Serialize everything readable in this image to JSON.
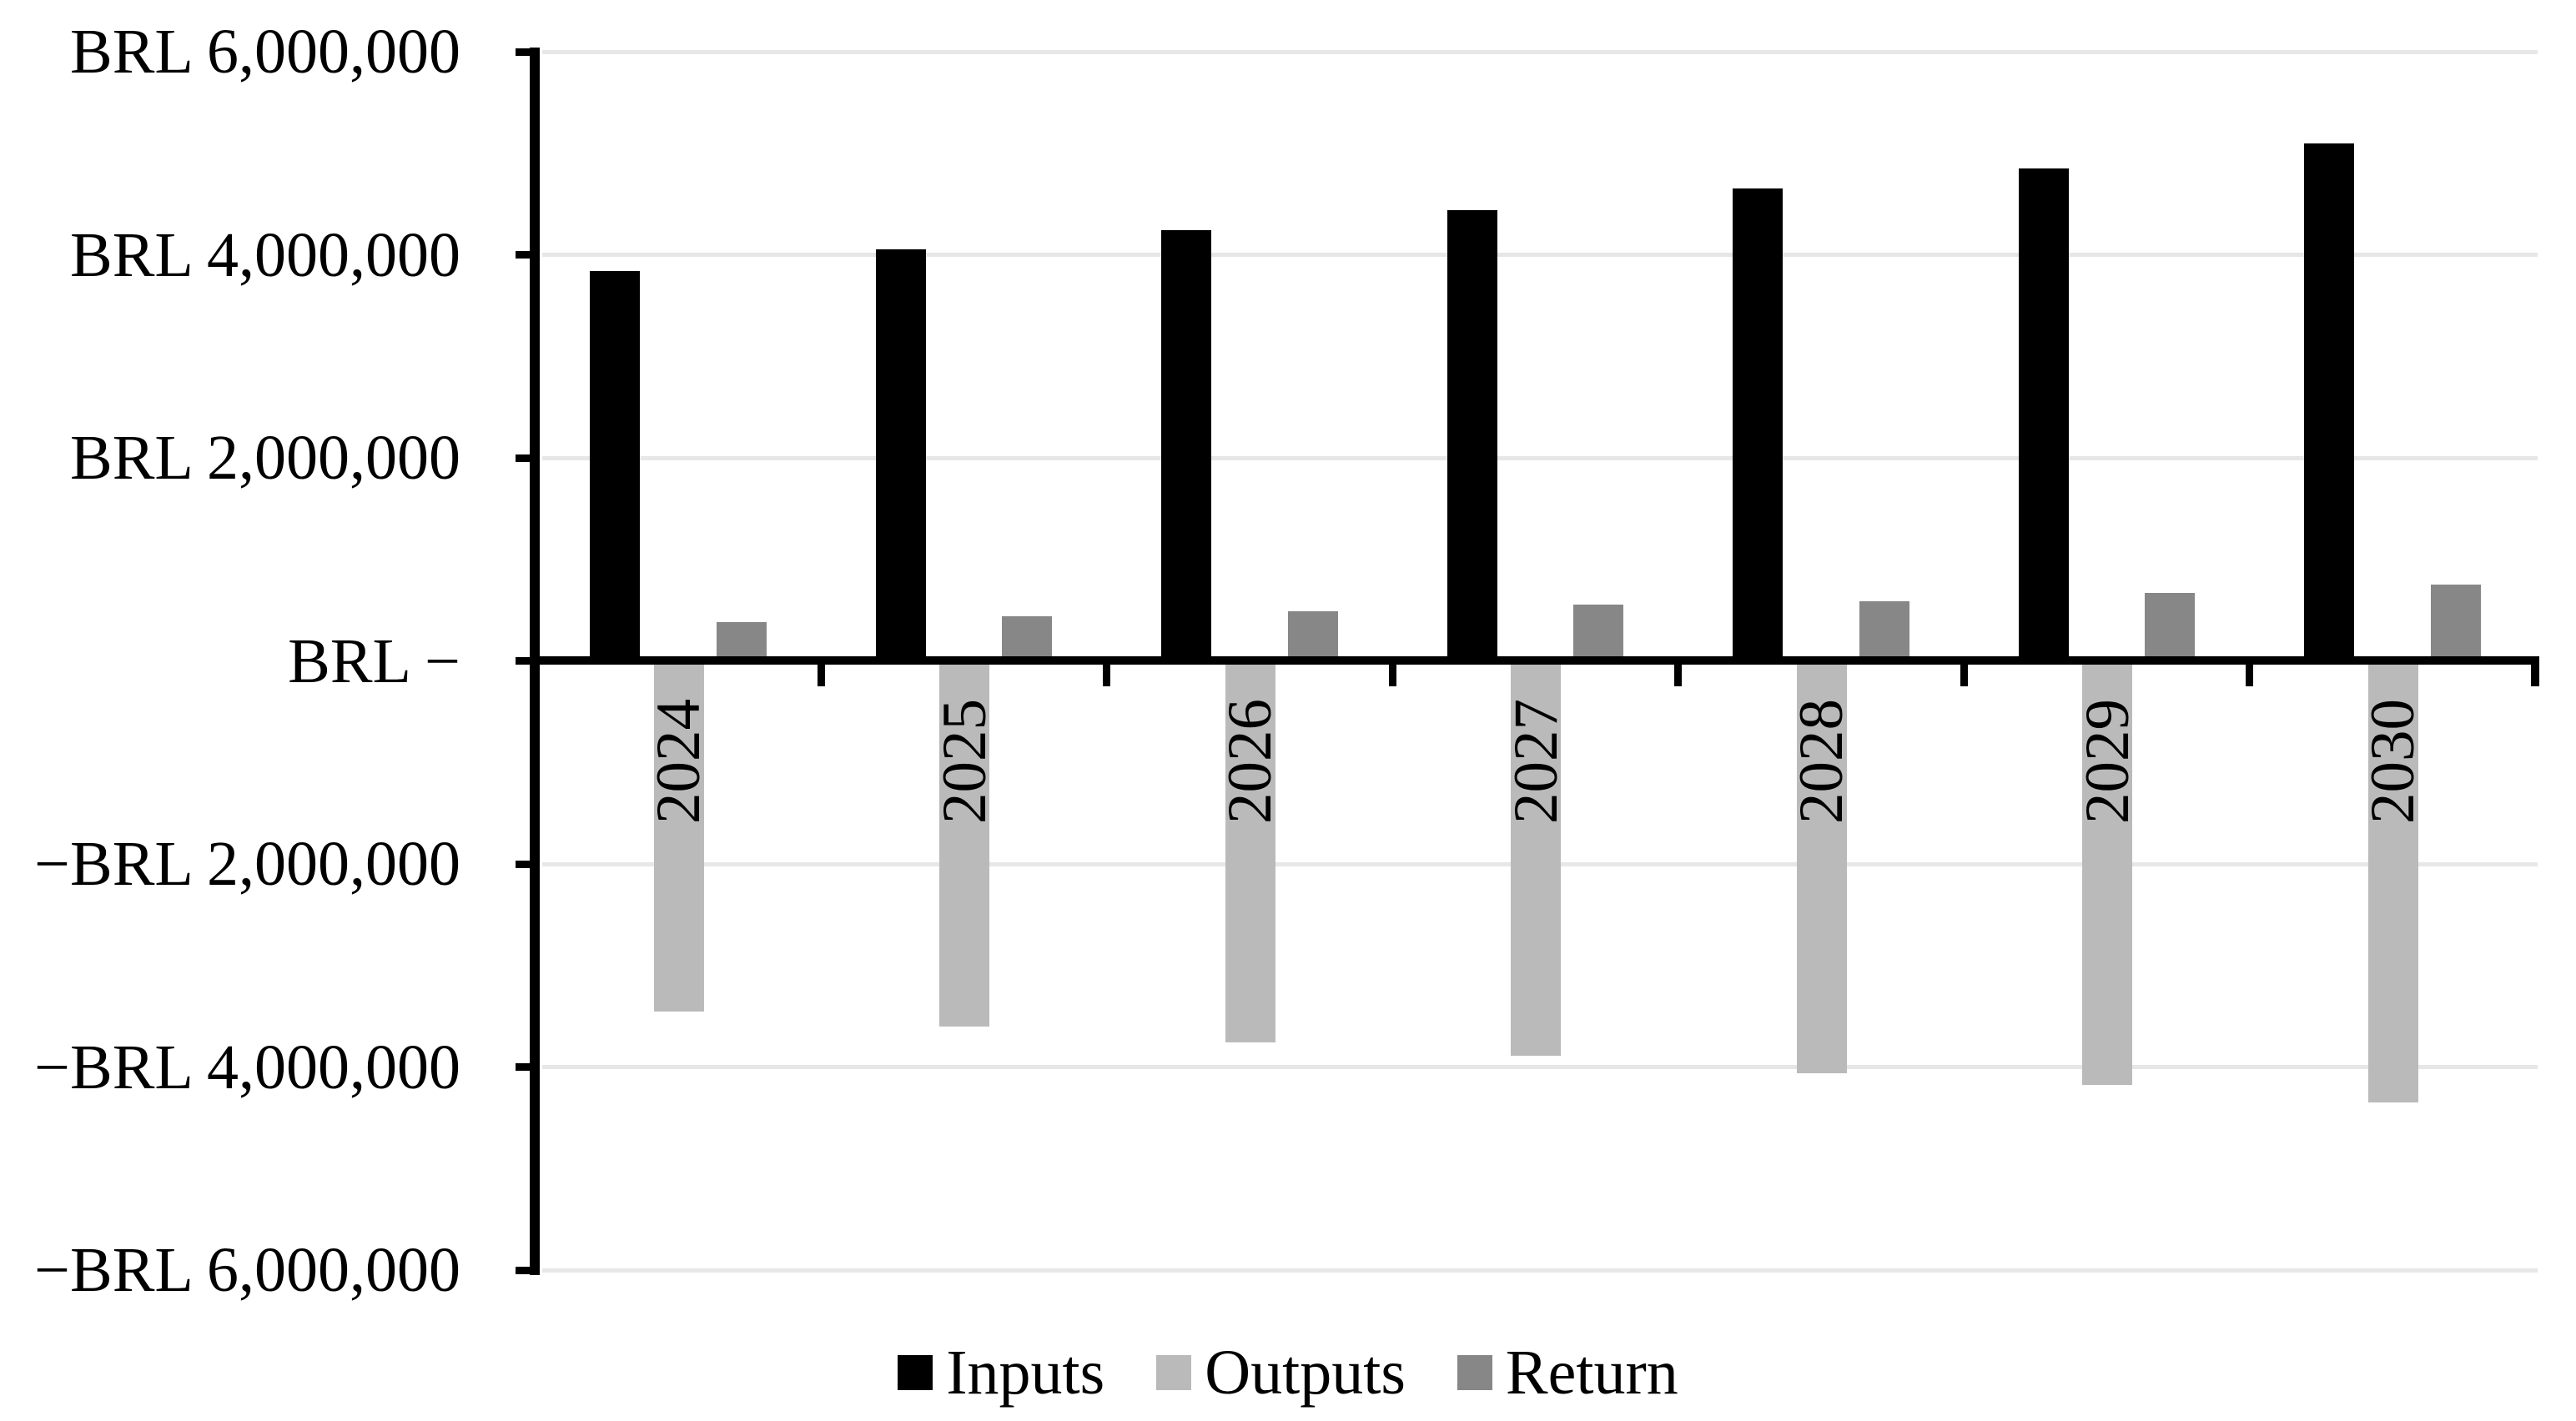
{
  "chart_data": {
    "type": "bar",
    "currency": "BRL",
    "categories": [
      "2024",
      "2025",
      "2026",
      "2027",
      "2028",
      "2029",
      "2030"
    ],
    "series": [
      {
        "name": "Inputs",
        "color": "#000000",
        "values": [
          3840000,
          4050000,
          4240000,
          4440000,
          4650000,
          4850000,
          5100000
        ]
      },
      {
        "name": "Outputs",
        "color": "#BABABA",
        "values": [
          -3450000,
          -3600000,
          -3760000,
          -3890000,
          -4060000,
          -4180000,
          -4350000
        ]
      },
      {
        "name": "Return",
        "color": "#878787",
        "values": [
          385000,
          440000,
          490000,
          555000,
          590000,
          670000,
          750000
        ]
      }
    ],
    "y_axis": {
      "tick_values": [
        6000000,
        4000000,
        2000000,
        0,
        -2000000,
        -4000000,
        -6000000
      ],
      "tick_labels": [
        "BRL 6,000,000",
        "BRL 4,000,000",
        "BRL 2,000,000",
        "BRL −",
        "−BRL 2,000,000",
        "−BRL 4,000,000",
        "−BRL 6,000,000"
      ],
      "ylim": [
        -6000000,
        6000000
      ],
      "grid": true
    },
    "legend": {
      "position": "bottom"
    },
    "colors": {
      "background": "#FFFFFF",
      "axis": "#000000",
      "gridline": "#E7E7E7"
    }
  }
}
